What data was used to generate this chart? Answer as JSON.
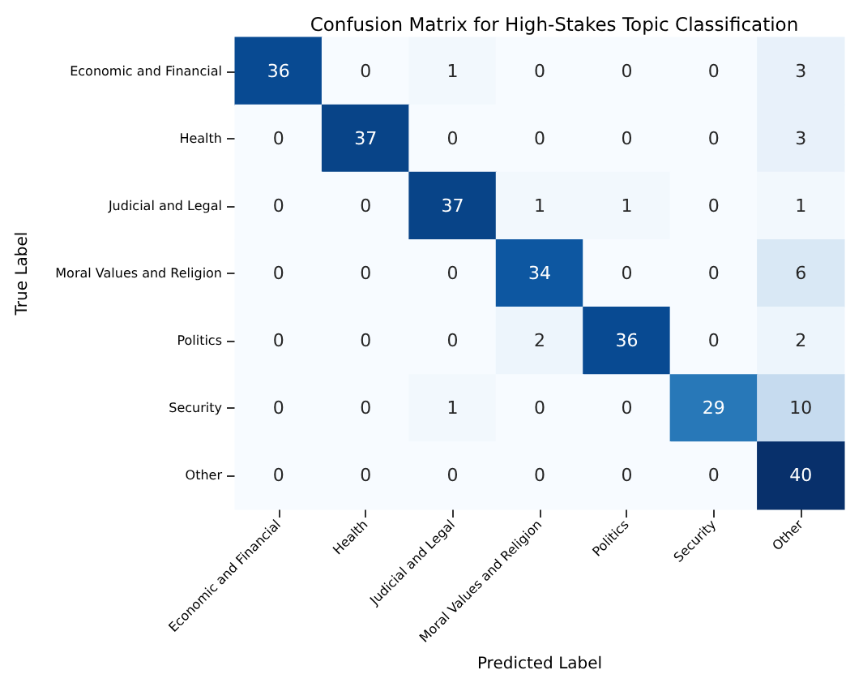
{
  "chart_data": {
    "type": "heatmap",
    "title": "Confusion Matrix for High-Stakes Topic Classification",
    "xlabel": "Predicted Label",
    "ylabel": "True Label",
    "categories": [
      "Economic and Financial",
      "Health",
      "Judicial and Legal",
      "Moral Values and Religion",
      "Politics",
      "Security",
      "Other"
    ],
    "y_categories": [
      "Economic and Financial",
      "Health",
      "Judicial and Legal",
      "Moral Values and Religion",
      "Politics",
      "Security",
      "Other"
    ],
    "cells": [
      [
        36,
        0,
        1,
        0,
        0,
        0,
        3
      ],
      [
        0,
        37,
        0,
        0,
        0,
        0,
        3
      ],
      [
        0,
        0,
        37,
        1,
        1,
        0,
        1
      ],
      [
        0,
        0,
        0,
        34,
        0,
        0,
        6
      ],
      [
        0,
        0,
        0,
        2,
        36,
        0,
        2
      ],
      [
        0,
        0,
        1,
        0,
        0,
        29,
        10
      ],
      [
        0,
        0,
        0,
        0,
        0,
        0,
        40
      ]
    ],
    "data_labels": true
  }
}
